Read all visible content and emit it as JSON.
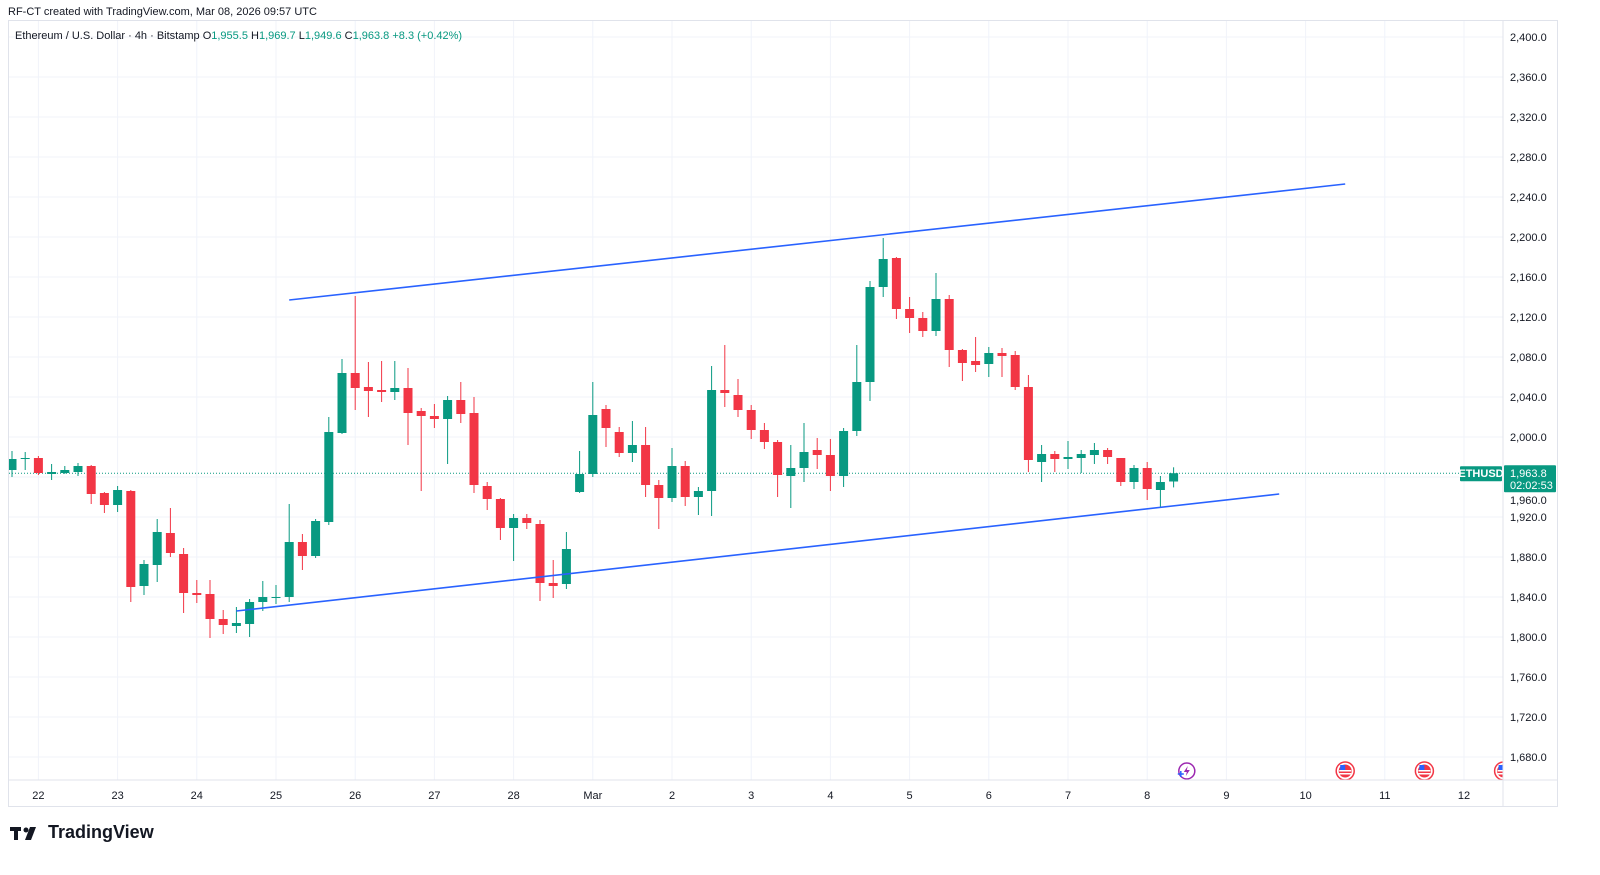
{
  "header": {
    "credit": "RF-CT created with TradingView.com, Mar 08, 2026 09:57 UTC",
    "symbol_title": "Ethereum / U.S. Dollar · 4h · Bitstamp",
    "open_label": "O",
    "open": "1,955.5",
    "high_label": "H",
    "high": "1,969.7",
    "low_label": "L",
    "low": "1,949.6",
    "close_label": "C",
    "close": "1,963.8",
    "change": "+8.3 (+0.42%)"
  },
  "price_label": {
    "symbol": "ETHUSD",
    "price": "1,963.8",
    "countdown": "02:02:53"
  },
  "logo": {
    "text": "TradingView"
  },
  "colors": {
    "up": "#089981",
    "down": "#f23645",
    "trendline": "#2962ff",
    "grid": "#f0f3fa",
    "last_price": "#089981"
  },
  "icons": {
    "event": "lightning-event-icon",
    "flags": [
      "us-flag-icon",
      "us-flag-icon",
      "us-flag-icon"
    ]
  },
  "chart_data": {
    "type": "candlestick",
    "interval": "4h",
    "candles_start": "2026-02-21 16:00",
    "ohlc_fields": [
      "open",
      "high",
      "low",
      "close"
    ],
    "candles": [
      [
        1967,
        1986,
        1960,
        1978
      ],
      [
        1979,
        1985,
        1967,
        1979
      ],
      [
        1979,
        1981,
        1962,
        1964
      ],
      [
        1963,
        1973,
        1957,
        1965
      ],
      [
        1964,
        1971,
        1963,
        1967
      ],
      [
        1965,
        1974,
        1961,
        1971
      ],
      [
        1971,
        1972,
        1933,
        1943
      ],
      [
        1944,
        1945,
        1924,
        1932
      ],
      [
        1932,
        1951,
        1925,
        1947
      ],
      [
        1946,
        1947,
        1835,
        1850
      ],
      [
        1851,
        1877,
        1842,
        1873
      ],
      [
        1872,
        1918,
        1855,
        1905
      ],
      [
        1904,
        1929,
        1880,
        1884
      ],
      [
        1883,
        1889,
        1824,
        1844
      ],
      [
        1844,
        1857,
        1834,
        1842
      ],
      [
        1843,
        1857,
        1799,
        1818
      ],
      [
        1818,
        1827,
        1803,
        1812
      ],
      [
        1811,
        1830,
        1804,
        1814
      ],
      [
        1813,
        1838,
        1800,
        1835
      ],
      [
        1835,
        1856,
        1826,
        1840
      ],
      [
        1840,
        1852,
        1833,
        1840
      ],
      [
        1840,
        1933,
        1835,
        1895
      ],
      [
        1895,
        1903,
        1867,
        1881
      ],
      [
        1881,
        1918,
        1879,
        1916
      ],
      [
        1915,
        2020,
        1912,
        2005
      ],
      [
        2004,
        2078,
        2003,
        2064
      ],
      [
        2064,
        2141,
        2027,
        2049
      ],
      [
        2050,
        2075,
        2020,
        2046
      ],
      [
        2047,
        2076,
        2035,
        2045
      ],
      [
        2045,
        2076,
        2037,
        2049
      ],
      [
        2049,
        2069,
        1992,
        2024
      ],
      [
        2026,
        2029,
        1946,
        2021
      ],
      [
        2021,
        2033,
        2009,
        2018
      ],
      [
        2018,
        2041,
        1973,
        2037
      ],
      [
        2037,
        2055,
        2014,
        2023
      ],
      [
        2024,
        2040,
        1944,
        1952
      ],
      [
        1951,
        1955,
        1927,
        1938
      ],
      [
        1938,
        1939,
        1897,
        1909
      ],
      [
        1909,
        1923,
        1876,
        1919
      ],
      [
        1919,
        1923,
        1908,
        1914
      ],
      [
        1913,
        1917,
        1836,
        1854
      ],
      [
        1854,
        1877,
        1839,
        1851
      ],
      [
        1853,
        1905,
        1848,
        1888
      ],
      [
        1945,
        1986,
        1944,
        1963
      ],
      [
        1963,
        2055,
        1960,
        2022
      ],
      [
        2028,
        2032,
        1990,
        2009
      ],
      [
        2005,
        2010,
        1980,
        1984
      ],
      [
        1984,
        2016,
        1975,
        1992
      ],
      [
        1992,
        2010,
        1940,
        1952
      ],
      [
        1952,
        1957,
        1908,
        1939
      ],
      [
        1939,
        1989,
        1935,
        1971
      ],
      [
        1971,
        1976,
        1931,
        1940
      ],
      [
        1940,
        1950,
        1922,
        1946
      ],
      [
        1946,
        2071,
        1921,
        2047
      ],
      [
        2047,
        2092,
        2030,
        2044
      ],
      [
        2042,
        2058,
        2020,
        2027
      ],
      [
        2027,
        2032,
        1998,
        2007
      ],
      [
        2007,
        2014,
        1988,
        1995
      ],
      [
        1995,
        1997,
        1940,
        1962
      ],
      [
        1961,
        1992,
        1929,
        1969
      ],
      [
        1969,
        2014,
        1955,
        1985
      ],
      [
        1987,
        1999,
        1968,
        1982
      ],
      [
        1982,
        1998,
        1946,
        1961
      ],
      [
        1961,
        2009,
        1950,
        2006
      ],
      [
        2006,
        2092,
        2001,
        2055
      ],
      [
        2055,
        2156,
        2036,
        2150
      ],
      [
        2150,
        2199,
        2140,
        2178
      ],
      [
        2179,
        2180,
        2118,
        2128
      ],
      [
        2128,
        2140,
        2104,
        2119
      ],
      [
        2119,
        2125,
        2100,
        2106
      ],
      [
        2106,
        2164,
        2101,
        2138
      ],
      [
        2138,
        2142,
        2070,
        2087
      ],
      [
        2087,
        2088,
        2056,
        2074
      ],
      [
        2076,
        2100,
        2065,
        2072
      ],
      [
        2073,
        2090,
        2060,
        2084
      ],
      [
        2084,
        2089,
        2060,
        2081
      ],
      [
        2082,
        2086,
        2047,
        2050
      ],
      [
        2050,
        2062,
        1965,
        1977
      ],
      [
        1975,
        1992,
        1955,
        1983
      ],
      [
        1983,
        1986,
        1965,
        1978
      ],
      [
        1978,
        1996,
        1968,
        1980
      ],
      [
        1979,
        1987,
        1964,
        1983
      ],
      [
        1982,
        1994,
        1973,
        1987
      ],
      [
        1987,
        1989,
        1973,
        1980
      ],
      [
        1979,
        1979,
        1951,
        1955
      ],
      [
        1955,
        1972,
        1948,
        1969
      ],
      [
        1969,
        1975,
        1937,
        1948
      ],
      [
        1947,
        1961,
        1930,
        1955
      ],
      [
        1955.5,
        1969.7,
        1949.6,
        1963.8
      ]
    ],
    "trendlines": [
      {
        "from": [
          "2026-02-25 04:00",
          2137
        ],
        "to": [
          "2026-03-10 12:00",
          2253
        ]
      },
      {
        "from": [
          "2026-02-24 12:00",
          1826
        ],
        "to": [
          "2026-03-09 16:00",
          1943
        ]
      }
    ],
    "last_price": 1963.8,
    "y_ticks": [
      "1,680.0",
      "1,720.0",
      "1,760.0",
      "1,800.0",
      "1,840.0",
      "1,880.0",
      "1,920.0",
      "1,960.0",
      "2,000.0",
      "2,040.0",
      "2,080.0",
      "2,120.0",
      "2,160.0",
      "2,200.0",
      "2,240.0",
      "2,280.0",
      "2,320.0",
      "2,360.0",
      "2,400.0"
    ],
    "y_tick_values": [
      1680,
      1720,
      1760,
      1800,
      1840,
      1880,
      1920,
      1960,
      2000,
      2040,
      2080,
      2120,
      2160,
      2200,
      2240,
      2280,
      2320,
      2360,
      2400
    ],
    "x_ticks": [
      "22",
      "23",
      "24",
      "25",
      "26",
      "27",
      "28",
      "Mar",
      "2",
      "3",
      "4",
      "5",
      "6",
      "7",
      "8",
      "9",
      "10",
      "11",
      "12"
    ],
    "x_tick_dates": [
      "2026-02-22",
      "2026-02-23",
      "2026-02-24",
      "2026-02-25",
      "2026-02-26",
      "2026-02-27",
      "2026-02-28",
      "2026-03-01",
      "2026-03-02",
      "2026-03-03",
      "2026-03-04",
      "2026-03-05",
      "2026-03-06",
      "2026-03-07",
      "2026-03-08",
      "2026-03-09",
      "2026-03-10",
      "2026-03-11",
      "2026-03-12"
    ],
    "events": [
      {
        "date": "2026-03-08 12:00",
        "icon": "lightning-event-icon"
      },
      {
        "date": "2026-03-10 12:00",
        "icon": "us-flag-icon"
      },
      {
        "date": "2026-03-11 12:00",
        "icon": "us-flag-icon"
      },
      {
        "date": "2026-03-12 12:00",
        "icon": "us-flag-icon"
      }
    ],
    "grid": true,
    "y_axis_position": "right"
  }
}
